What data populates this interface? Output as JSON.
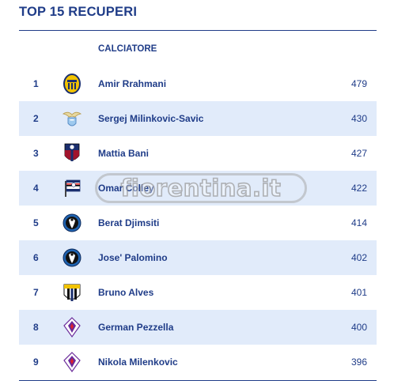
{
  "title": "TOP 15 RECUPERI",
  "column_header": "CALCIATORE",
  "watermark": "fiorentina.it",
  "colors": {
    "primary": "#1f3c88",
    "row_alt": "#e1ebfa"
  },
  "rows": [
    {
      "rank": "1",
      "player": "Amir Rrahmani",
      "value": "479",
      "club_icon": "hellas-verona-crest-icon"
    },
    {
      "rank": "2",
      "player": "Sergej Milinkovic-Savic",
      "value": "430",
      "club_icon": "lazio-eagle-crest-icon"
    },
    {
      "rank": "3",
      "player": "Mattia Bani",
      "value": "427",
      "club_icon": "bologna-crest-icon"
    },
    {
      "rank": "4",
      "player": "Omar Colley",
      "value": "422",
      "club_icon": "sampdoria-crest-icon"
    },
    {
      "rank": "5",
      "player": "Berat Djimsiti",
      "value": "414",
      "club_icon": "atalanta-crest-icon"
    },
    {
      "rank": "6",
      "player": "Jose' Palomino",
      "value": "402",
      "club_icon": "atalanta-crest-icon"
    },
    {
      "rank": "7",
      "player": "Bruno Alves",
      "value": "401",
      "club_icon": "parma-crest-icon"
    },
    {
      "rank": "8",
      "player": "German Pezzella",
      "value": "400",
      "club_icon": "fiorentina-crest-icon"
    },
    {
      "rank": "9",
      "player": "Nikola Milenkovic",
      "value": "396",
      "club_icon": "fiorentina-crest-icon"
    }
  ]
}
